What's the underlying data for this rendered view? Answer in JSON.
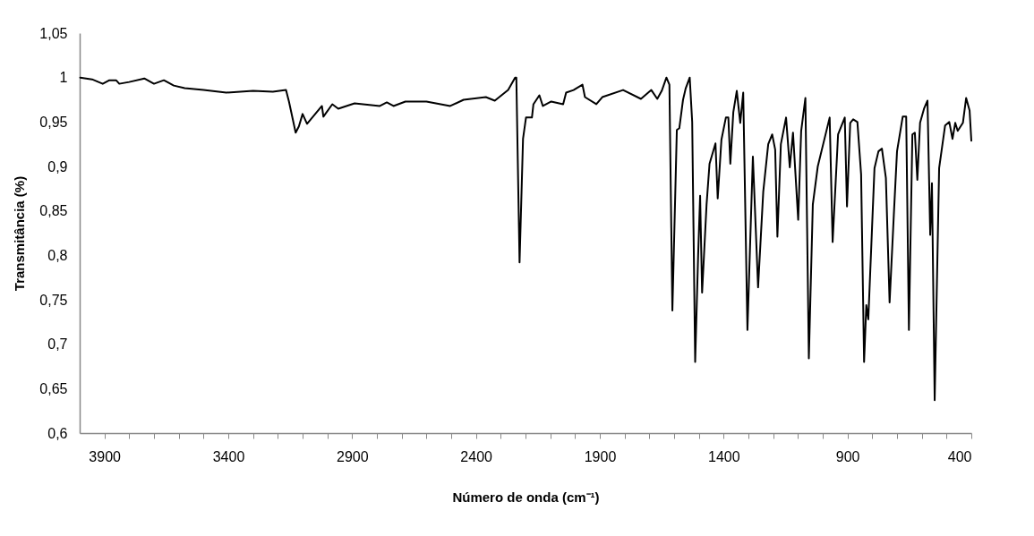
{
  "chart_data": {
    "type": "line",
    "xlabel": "Número de onda (cm⁻¹)",
    "ylabel": "Transmitância (%)",
    "xlim": [
      4000,
      400
    ],
    "ylim": [
      0.6,
      1.05
    ],
    "xticks": [
      3900,
      {
        "value": 3800,
        "label": null
      },
      {
        "value": 3700,
        "label": null
      },
      {
        "value": 3600,
        "label": null
      },
      {
        "value": 3500,
        "label": null
      },
      3400,
      {
        "value": 3300,
        "label": null
      },
      {
        "value": 3200,
        "label": null
      },
      {
        "value": 3100,
        "label": null
      },
      {
        "value": 3000,
        "label": null
      },
      2900,
      {
        "value": 2800,
        "label": null
      },
      {
        "value": 2700,
        "label": null
      },
      {
        "value": 2600,
        "label": null
      },
      {
        "value": 2500,
        "label": null
      },
      2400,
      {
        "value": 2300,
        "label": null
      },
      {
        "value": 2200,
        "label": null
      },
      {
        "value": 2100,
        "label": null
      },
      {
        "value": 2000,
        "label": null
      },
      1900,
      {
        "value": 1800,
        "label": null
      },
      {
        "value": 1700,
        "label": null
      },
      {
        "value": 1600,
        "label": null
      },
      {
        "value": 1500,
        "label": null
      },
      1400,
      {
        "value": 1300,
        "label": null
      },
      {
        "value": 1200,
        "label": null
      },
      {
        "value": 1100,
        "label": null
      },
      {
        "value": 1000,
        "label": null
      },
      900,
      {
        "value": 800,
        "label": null
      },
      {
        "value": 700,
        "label": null
      },
      {
        "value": 600,
        "label": null
      },
      {
        "value": 500,
        "label": null
      },
      400
    ],
    "yticks": [
      {
        "value": 0.6,
        "label": "0,6"
      },
      {
        "value": 0.65,
        "label": "0,65"
      },
      {
        "value": 0.7,
        "label": "0,7"
      },
      {
        "value": 0.75,
        "label": "0,75"
      },
      {
        "value": 0.8,
        "label": "0,8"
      },
      {
        "value": 0.85,
        "label": "0,85"
      },
      {
        "value": 0.9,
        "label": "0,9"
      },
      {
        "value": 0.95,
        "label": "0,95"
      },
      1,
      {
        "value": 1.05,
        "label": "1,05"
      }
    ],
    "x": [
      3998,
      3950,
      3907,
      3880,
      3853,
      3840,
      3800,
      3739,
      3700,
      3660,
      3620,
      3576,
      3500,
      3408,
      3300,
      3220,
      3167,
      3155,
      3128,
      3115,
      3100,
      3082,
      3022,
      3016,
      2980,
      2956,
      2890,
      2788,
      2760,
      2733,
      2685,
      2600,
      2504,
      2450,
      2360,
      2324,
      2270,
      2242,
      2237,
      2224,
      2210,
      2198,
      2174,
      2168,
      2144,
      2130,
      2096,
      2048,
      2036,
      2006,
      1970,
      1960,
      1914,
      1890,
      1806,
      1734,
      1692,
      1668,
      1650,
      1631,
      1619,
      1607,
      1589,
      1579,
      1564,
      1553,
      1537,
      1527,
      1515,
      1503,
      1495,
      1487,
      1469,
      1457,
      1433,
      1424,
      1409,
      1391,
      1381,
      1373,
      1361,
      1347,
      1333,
      1321,
      1304,
      1282,
      1261,
      1240,
      1220,
      1204,
      1192,
      1183,
      1169,
      1148,
      1133,
      1120,
      1099,
      1087,
      1070,
      1056,
      1040,
      1020,
      972,
      960,
      938,
      911,
      902,
      889,
      877,
      860,
      845,
      833,
      824,
      816,
      791,
      775,
      761,
      745,
      730,
      713,
      700,
      677,
      663,
      652,
      638,
      628,
      618,
      607,
      591,
      577,
      566,
      559,
      548,
      530,
      506,
      489,
      476,
      465,
      455,
      434,
      421,
      407,
      400
    ],
    "series": [
      {
        "color": "#000000",
        "values": [
          1.0,
          0.998,
          0.993,
          0.997,
          0.997,
          0.993,
          0.995,
          0.999,
          0.993,
          0.997,
          0.991,
          0.988,
          0.986,
          0.983,
          0.985,
          0.984,
          0.986,
          0.973,
          0.938,
          0.945,
          0.959,
          0.948,
          0.968,
          0.956,
          0.97,
          0.965,
          0.971,
          0.968,
          0.972,
          0.968,
          0.973,
          0.973,
          0.968,
          0.975,
          0.978,
          0.974,
          0.986,
          1.0,
          1.0,
          0.792,
          0.931,
          0.955,
          0.955,
          0.97,
          0.98,
          0.968,
          0.973,
          0.97,
          0.983,
          0.986,
          0.992,
          0.978,
          0.97,
          0.978,
          0.986,
          0.976,
          0.986,
          0.976,
          0.985,
          1.0,
          0.992,
          0.738,
          0.941,
          0.943,
          0.975,
          0.988,
          1.0,
          0.95,
          0.68,
          0.8,
          0.867,
          0.758,
          0.857,
          0.903,
          0.926,
          0.864,
          0.93,
          0.955,
          0.955,
          0.903,
          0.961,
          0.985,
          0.949,
          0.983,
          0.716,
          0.911,
          0.764,
          0.872,
          0.925,
          0.936,
          0.919,
          0.821,
          0.925,
          0.955,
          0.899,
          0.938,
          0.84,
          0.94,
          0.977,
          0.684,
          0.857,
          0.9,
          0.955,
          0.815,
          0.936,
          0.955,
          0.855,
          0.949,
          0.953,
          0.95,
          0.891,
          0.68,
          0.744,
          0.728,
          0.898,
          0.917,
          0.92,
          0.887,
          0.747,
          0.845,
          0.917,
          0.956,
          0.956,
          0.716,
          0.936,
          0.938,
          0.885,
          0.949,
          0.965,
          0.974,
          0.823,
          0.881,
          0.637,
          0.898,
          0.946,
          0.95,
          0.931,
          0.949,
          0.94,
          0.949,
          0.977,
          0.963,
          0.929
        ]
      }
    ]
  }
}
